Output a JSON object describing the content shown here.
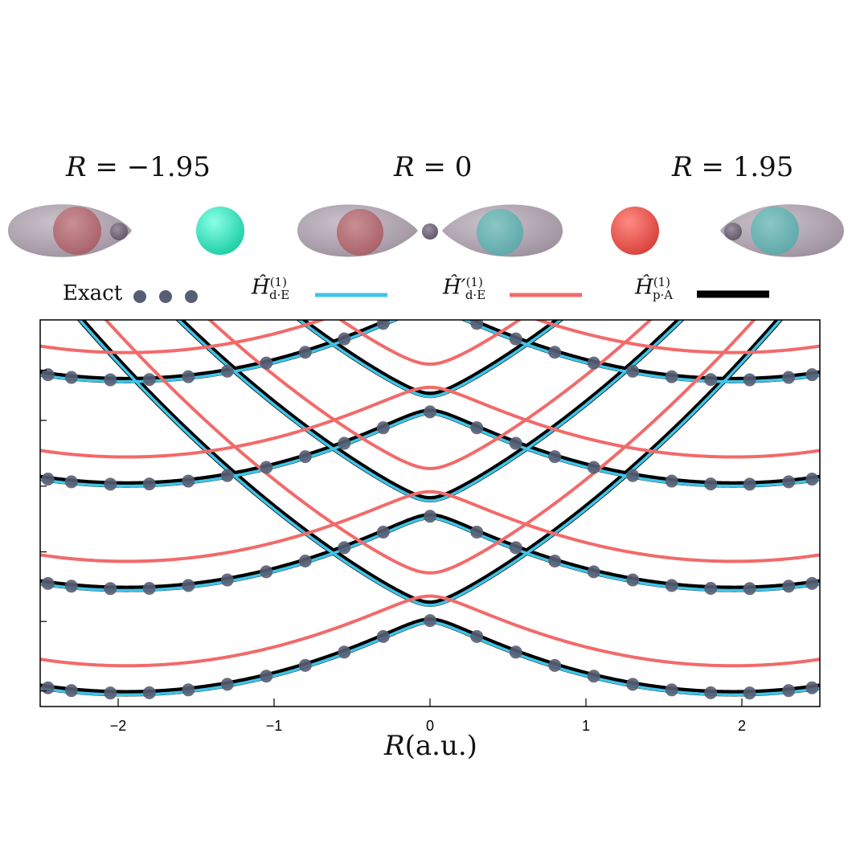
{
  "panel_labels": [
    {
      "prefix": "R",
      "eq": " = ",
      "value": "−1.95"
    },
    {
      "prefix": "R",
      "eq": " = ",
      "value": "0"
    },
    {
      "prefix": "R",
      "eq": " = ",
      "value": "1.95"
    }
  ],
  "legend": {
    "exact_label": "Exact",
    "h_de_label": "Ĥ",
    "h_de_sub": "d·E",
    "h_de_sup": "(1)",
    "h_de_prime_label": "Ĥ′",
    "h_de_prime_sub": "d·E",
    "h_de_prime_sup": "(1)",
    "h_pa_label": "Ĥ",
    "h_pa_sub": "p·A",
    "h_pa_sup": "(1)"
  },
  "colors": {
    "exact": "#565e73",
    "h_de": "#40c4e8",
    "h_de_prime": "#f26a6a",
    "h_pa": "#000000",
    "blob": "#b4a8b4",
    "red_sphere": "#f0554e",
    "cyan_sphere": "#3ee8c8"
  },
  "chart_data": {
    "type": "line",
    "xlabel_var": "R",
    "xlabel_unit": "(a.u.)",
    "xlim": [
      -2.5,
      2.5
    ],
    "ylim": [
      0,
      10
    ],
    "xticks": [
      -2,
      -1,
      0,
      1,
      2
    ],
    "xtick_labels": [
      "−2",
      "−1",
      "0",
      "1",
      "2"
    ],
    "yticks": [
      0.4,
      2.2,
      4,
      5.7,
      7.4,
      8.7
    ],
    "series": [
      {
        "key": "h_pa"
      },
      {
        "key": "h_de"
      },
      {
        "key": "h_de_prime"
      },
      {
        "key": "exact"
      }
    ],
    "exact_x": [
      -2.45,
      -2.3,
      -2.05,
      -1.8,
      -1.55,
      -1.3,
      -1.05,
      -0.8,
      -0.55,
      -0.3,
      0,
      0.3,
      0.55,
      0.8,
      1.05,
      1.3,
      1.55,
      1.8,
      2.05,
      2.3,
      2.45
    ]
  }
}
